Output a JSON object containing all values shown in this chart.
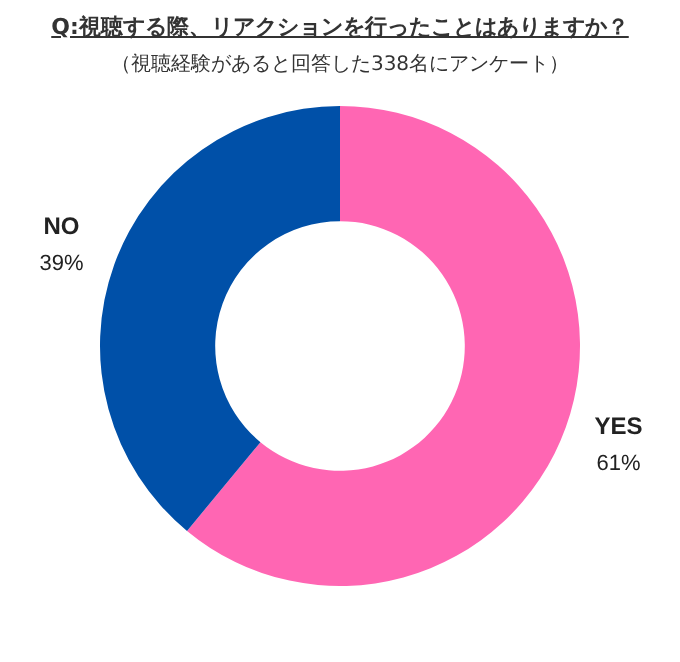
{
  "chart_data": {
    "type": "donut",
    "title": "Q:視聴する際、リアクションを行ったことはありますか？",
    "subtitle": "（視聴経験があると回答した338名にアンケート）",
    "categories": [
      "YES",
      "NO"
    ],
    "values": [
      61,
      39
    ],
    "colors": [
      "#ff66b3",
      "#0050a8"
    ],
    "value_labels": [
      "61%",
      "39%"
    ],
    "legend": false
  }
}
